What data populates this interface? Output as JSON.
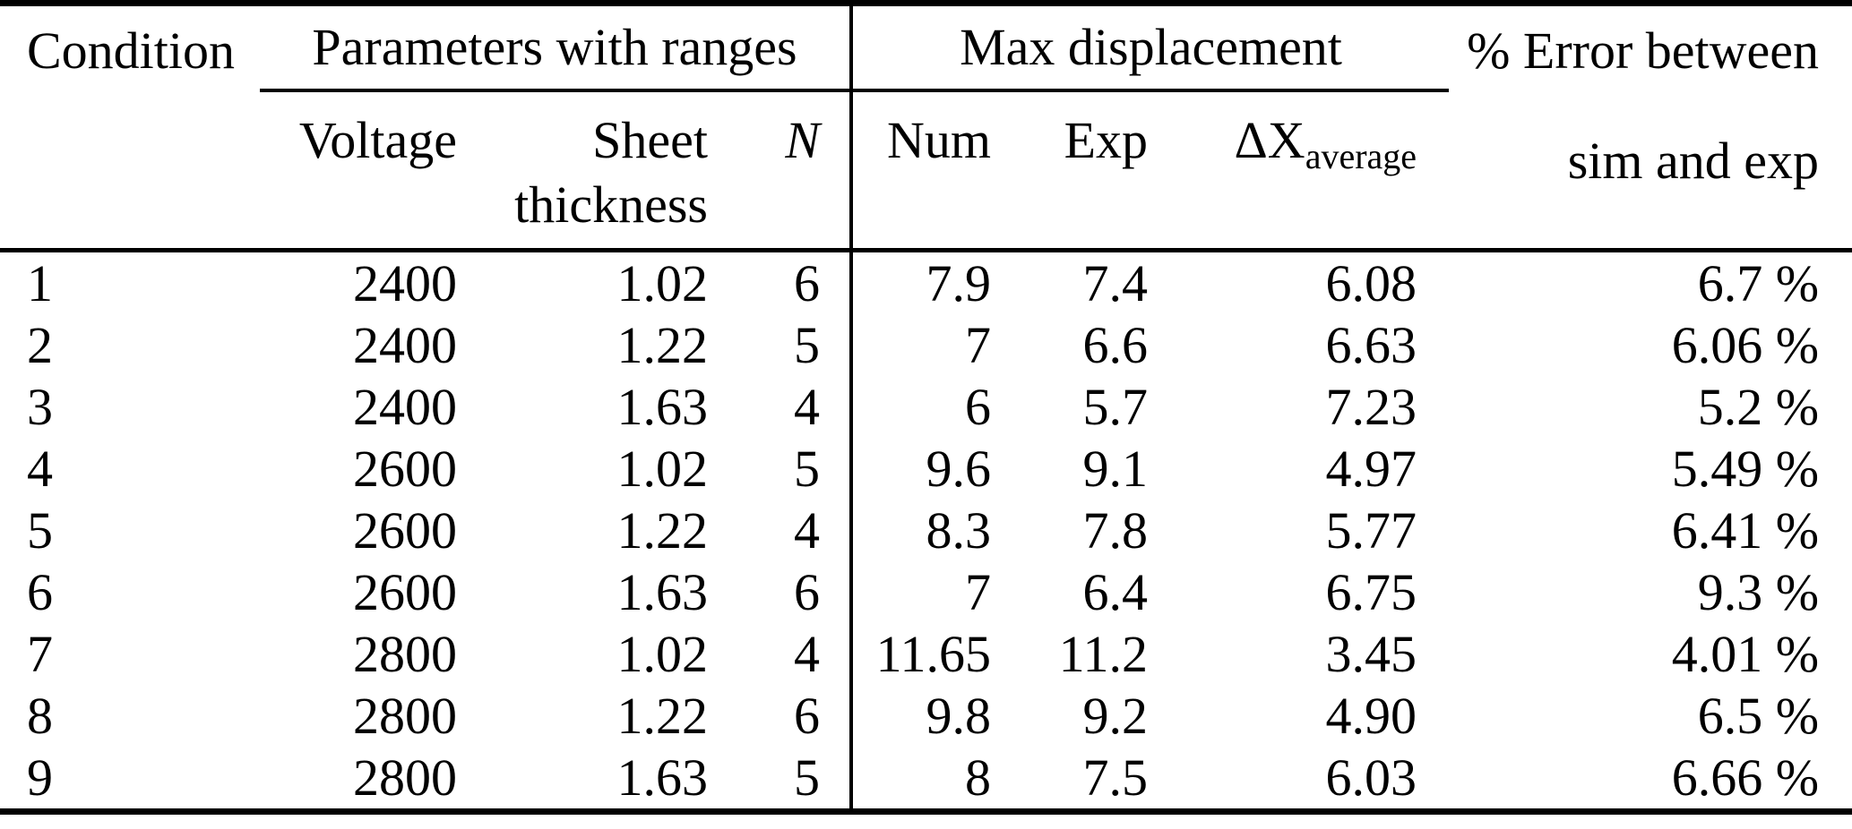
{
  "colors": {
    "text": "#000000",
    "background": "#ffffff",
    "rule": "#000000"
  },
  "table": {
    "headers": {
      "condition": "Condition",
      "group_params": "Parameters with ranges",
      "group_maxdisp": "Max displacement",
      "error_line1": "% Error between",
      "error_line2": "sim and exp",
      "voltage": "Voltage",
      "sheet_line1": "Sheet",
      "sheet_line2": "thickness",
      "n": "N",
      "num": "Num",
      "exp": "Exp",
      "dx_main": "ΔX",
      "dx_sub": "average"
    },
    "rows": [
      {
        "cond": "1",
        "volt": "2400",
        "sheet": "1.02",
        "n": "6",
        "num": "7.9",
        "exp": "7.4",
        "dx": "6.08",
        "err": "6.7 %"
      },
      {
        "cond": "2",
        "volt": "2400",
        "sheet": "1.22",
        "n": "5",
        "num": "7",
        "exp": "6.6",
        "dx": "6.63",
        "err": "6.06 %"
      },
      {
        "cond": "3",
        "volt": "2400",
        "sheet": "1.63",
        "n": "4",
        "num": "6",
        "exp": "5.7",
        "dx": "7.23",
        "err": "5.2 %"
      },
      {
        "cond": "4",
        "volt": "2600",
        "sheet": "1.02",
        "n": "5",
        "num": "9.6",
        "exp": "9.1",
        "dx": "4.97",
        "err": "5.49 %"
      },
      {
        "cond": "5",
        "volt": "2600",
        "sheet": "1.22",
        "n": "4",
        "num": "8.3",
        "exp": "7.8",
        "dx": "5.77",
        "err": "6.41 %"
      },
      {
        "cond": "6",
        "volt": "2600",
        "sheet": "1.63",
        "n": "6",
        "num": "7",
        "exp": "6.4",
        "dx": "6.75",
        "err": "9.3 %"
      },
      {
        "cond": "7",
        "volt": "2800",
        "sheet": "1.02",
        "n": "4",
        "num": "11.65",
        "exp": "11.2",
        "dx": "3.45",
        "err": "4.01 %"
      },
      {
        "cond": "8",
        "volt": "2800",
        "sheet": "1.22",
        "n": "6",
        "num": "9.8",
        "exp": "9.2",
        "dx": "4.90",
        "err": "6.5 %"
      },
      {
        "cond": "9",
        "volt": "2800",
        "sheet": "1.63",
        "n": "5",
        "num": "8",
        "exp": "7.5",
        "dx": "6.03",
        "err": "6.66 %"
      }
    ]
  }
}
